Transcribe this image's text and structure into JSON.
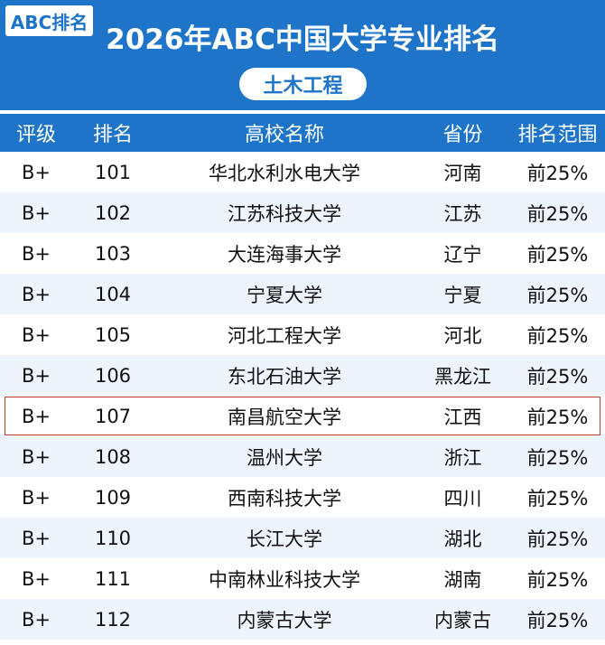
{
  "badge": "ABC排名",
  "title": "2026年ABC中国大学专业排名",
  "subject": "土木工程",
  "columns": [
    "评级",
    "排名",
    "高校名称",
    "省份",
    "排名范围"
  ],
  "rows": [
    {
      "grade": "B+",
      "rank": "101",
      "name": "华北水利水电大学",
      "province": "河南",
      "range": "前25%"
    },
    {
      "grade": "B+",
      "rank": "102",
      "name": "江苏科技大学",
      "province": "江苏",
      "range": "前25%"
    },
    {
      "grade": "B+",
      "rank": "103",
      "name": "大连海事大学",
      "province": "辽宁",
      "range": "前25%"
    },
    {
      "grade": "B+",
      "rank": "104",
      "name": "宁夏大学",
      "province": "宁夏",
      "range": "前25%"
    },
    {
      "grade": "B+",
      "rank": "105",
      "name": "河北工程大学",
      "province": "河北",
      "range": "前25%"
    },
    {
      "grade": "B+",
      "rank": "106",
      "name": "东北石油大学",
      "province": "黑龙江",
      "range": "前25%"
    },
    {
      "grade": "B+",
      "rank": "107",
      "name": "南昌航空大学",
      "province": "江西",
      "range": "前25%",
      "highlighted": true
    },
    {
      "grade": "B+",
      "rank": "108",
      "name": "温州大学",
      "province": "浙江",
      "range": "前25%"
    },
    {
      "grade": "B+",
      "rank": "109",
      "name": "西南科技大学",
      "province": "四川",
      "range": "前25%"
    },
    {
      "grade": "B+",
      "rank": "110",
      "name": "长江大学",
      "province": "湖北",
      "range": "前25%"
    },
    {
      "grade": "B+",
      "rank": "111",
      "name": "中南林业科技大学",
      "province": "湖南",
      "range": "前25%"
    },
    {
      "grade": "B+",
      "rank": "112",
      "name": "内蒙古大学",
      "province": "内蒙古",
      "range": "前25%"
    }
  ],
  "colors": {
    "header": "#1e74c8",
    "row_alt": "#eef4fb",
    "highlight_border": "#c0392b"
  }
}
